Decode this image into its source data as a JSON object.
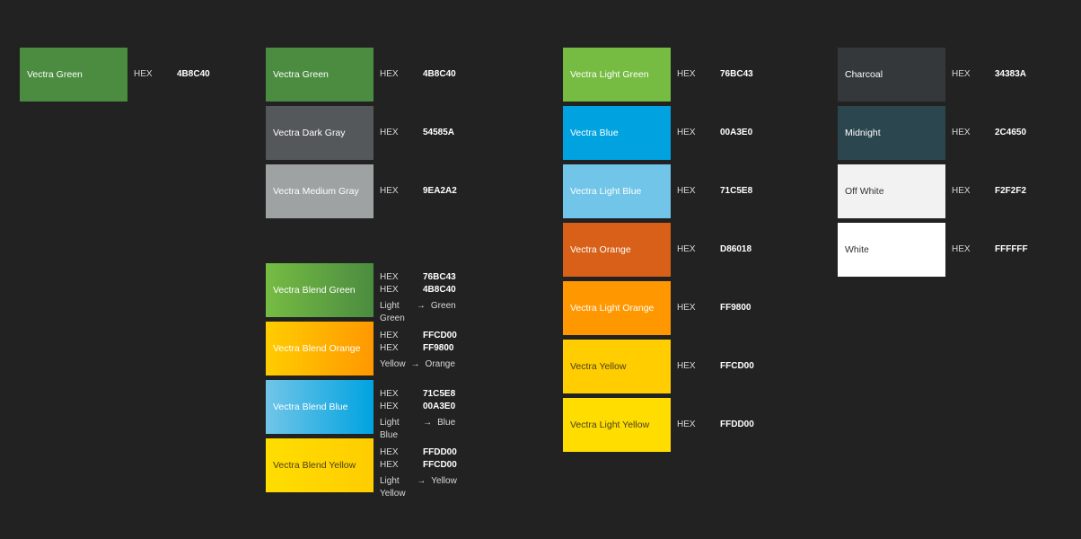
{
  "hex_label": "HEX",
  "arrow": "→",
  "primary": {
    "name": "Vectra Green",
    "hex": "4B8C40",
    "color": "#4B8C40"
  },
  "column_core": [
    {
      "name": "Vectra Green",
      "hex": "4B8C40",
      "color": "#4B8C40"
    },
    {
      "name": "Vectra Dark Gray",
      "hex": "54585A",
      "color": "#54585A"
    },
    {
      "name": "Vectra Medium Gray",
      "hex": "9EA2A2",
      "color": "#9EA2A2"
    }
  ],
  "blends": [
    {
      "name": "Vectra Blend Green",
      "hex1": "76BC43",
      "hex2": "4B8C40",
      "from": "Light Green",
      "to": "Green",
      "color1": "#76BC43",
      "color2": "#4B8C40"
    },
    {
      "name": "Vectra Blend Orange",
      "hex1": "FFCD00",
      "hex2": "FF9800",
      "from": "Yellow",
      "to": "Orange",
      "color1": "#FFCD00",
      "color2": "#FF9800"
    },
    {
      "name": "Vectra Blend Blue",
      "hex1": "71C5E8",
      "hex2": "00A3E0",
      "from": "Light Blue",
      "to": "Blue",
      "color1": "#71C5E8",
      "color2": "#00A3E0"
    },
    {
      "name": "Vectra Blend Yellow",
      "hex1": "FFDD00",
      "hex2": "FFCD00",
      "from": "Light Yellow",
      "to": "Yellow",
      "color1": "#FFDD00",
      "color2": "#FFCD00"
    }
  ],
  "column_accents": [
    {
      "name": "Vectra Light Green",
      "hex": "76BC43",
      "color": "#76BC43"
    },
    {
      "name": "Vectra Blue",
      "hex": "00A3E0",
      "color": "#00A3E0"
    },
    {
      "name": "Vectra Light Blue",
      "hex": "71C5E8",
      "color": "#71C5E8"
    },
    {
      "name": "Vectra Orange",
      "hex": "D86018",
      "color": "#D86018"
    },
    {
      "name": "Vectra Light Orange",
      "hex": "FF9800",
      "color": "#FF9800"
    },
    {
      "name": "Vectra Yellow",
      "hex": "FFCD00",
      "color": "#FFCD00"
    },
    {
      "name": "Vectra Light Yellow",
      "hex": "FFDD00",
      "color": "#FFDD00"
    }
  ],
  "column_neutrals": [
    {
      "name": "Charcoal",
      "hex": "34383A",
      "color": "#34383A"
    },
    {
      "name": "Midnight",
      "hex": "2C4650",
      "color": "#2C4650"
    },
    {
      "name": "Off White",
      "hex": "F2F2F2",
      "color": "#F2F2F2"
    },
    {
      "name": "White",
      "hex": "FFFFFF",
      "color": "#FFFFFF"
    }
  ]
}
